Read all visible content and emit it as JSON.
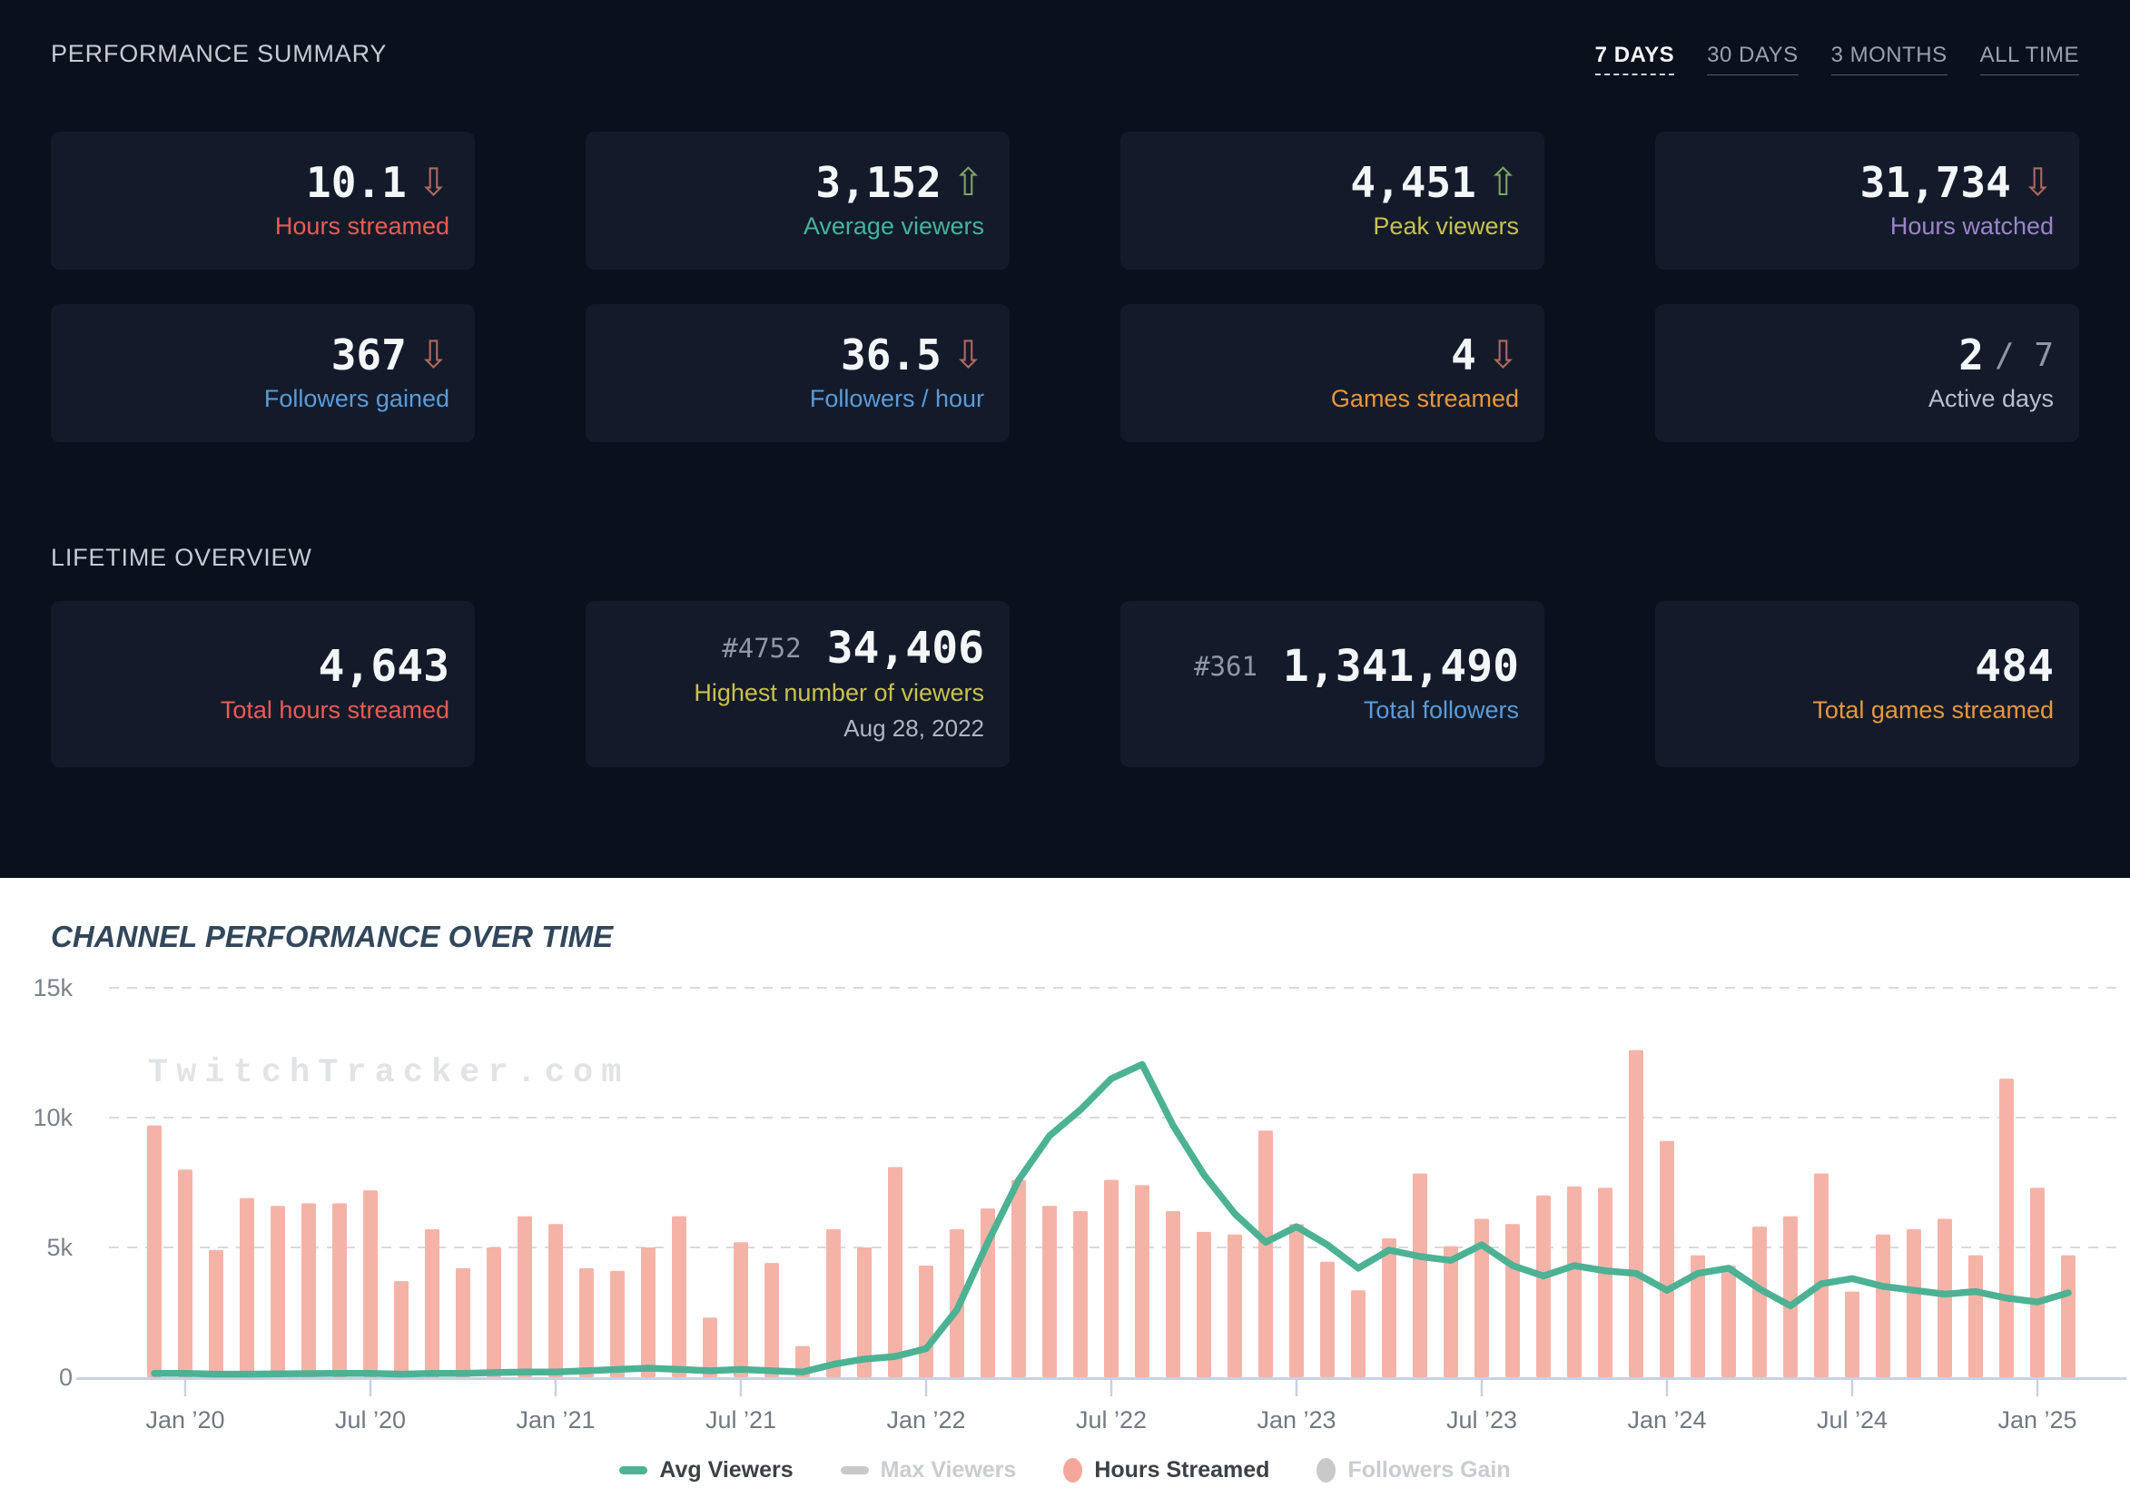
{
  "icons": {
    "up_arrow_glyph": "⇧",
    "down_arrow_glyph": "⇩"
  },
  "colors": {
    "background_dark": "#0a101c",
    "card_background": "#131b2b",
    "trend_up": "#7fa463",
    "trend_down": "#b2685f",
    "axis": "#c8d1e4",
    "gridline": "#dadada"
  },
  "summary": {
    "title": "PERFORMANCE SUMMARY",
    "tabs": [
      {
        "label": "7 DAYS",
        "active": true
      },
      {
        "label": "30 DAYS",
        "active": false
      },
      {
        "label": "3 MONTHS",
        "active": false
      },
      {
        "label": "ALL TIME",
        "active": false
      }
    ],
    "cards": [
      {
        "value": "10.1",
        "label": "Hours streamed",
        "trend": "down",
        "color": "#ee5a52"
      },
      {
        "value": "3,152",
        "label": "Average viewers",
        "trend": "up",
        "color": "#45b39a"
      },
      {
        "value": "4,451",
        "label": "Peak viewers",
        "trend": "up",
        "color": "#c9c14c"
      },
      {
        "value": "31,734",
        "label": "Hours watched",
        "trend": "down",
        "color": "#9c83cb"
      },
      {
        "value": "367",
        "label": "Followers gained",
        "trend": "down",
        "color": "#5b9bd8"
      },
      {
        "value": "36.5",
        "label": "Followers / hour",
        "trend": "down",
        "color": "#5b9bd8"
      },
      {
        "value": "4",
        "label": "Games streamed",
        "trend": "down",
        "color": "#e8973a"
      },
      {
        "value": "2",
        "suffix": " / 7",
        "label": "Active days",
        "trend": null,
        "color": "#b7c0cc"
      }
    ]
  },
  "lifetime": {
    "title": "LIFETIME OVERVIEW",
    "cards": [
      {
        "rank": "",
        "value": "4,643",
        "label": "Total hours streamed",
        "date": "",
        "color": "#ee5a52"
      },
      {
        "rank": "#4752",
        "value": "34,406",
        "label": "Highest number of viewers",
        "date": "Aug 28, 2022",
        "color": "#c9c14c"
      },
      {
        "rank": "#361",
        "value": "1,341,490",
        "label": "Total followers",
        "date": "",
        "color": "#5b9bd8"
      },
      {
        "rank": "",
        "value": "484",
        "label": "Total games streamed",
        "date": "",
        "color": "#e8973a"
      }
    ]
  },
  "chart": {
    "title": "CHANNEL PERFORMANCE OVER TIME",
    "watermark": "TwitchTracker.com",
    "legend": {
      "items": [
        {
          "label": "Avg Viewers",
          "active": true,
          "swatch": "line",
          "color": "#4db394"
        },
        {
          "label": "Max Viewers",
          "active": false,
          "swatch": "line",
          "color": "#c9c9c9"
        },
        {
          "label": "Hours Streamed",
          "active": true,
          "swatch": "circle",
          "color": "#f5a79c"
        },
        {
          "label": "Followers Gain",
          "active": false,
          "swatch": "circle",
          "color": "#c9c9c9"
        }
      ]
    }
  },
  "chart_data": {
    "type": "mixed",
    "title": "CHANNEL PERFORMANCE OVER TIME",
    "ylim": [
      0,
      15000
    ],
    "grid": "dashed-horizontal",
    "legend_position": "bottom-center",
    "months": [
      "Dec ’19",
      "Jan ’20",
      "Feb ’20",
      "Mar ’20",
      "Apr ’20",
      "May ’20",
      "Jun ’20",
      "Jul ’20",
      "Aug ’20",
      "Sep ’20",
      "Oct ’20",
      "Nov ’20",
      "Dec ’20",
      "Jan ’21",
      "Feb ’21",
      "Mar ’21",
      "Apr ’21",
      "May ’21",
      "Jun ’21",
      "Jul ’21",
      "Aug ’21",
      "Sep ’21",
      "Oct ’21",
      "Nov ’21",
      "Dec ’21",
      "Jan ’22",
      "Feb ’22",
      "Mar ’22",
      "Apr ’22",
      "May ’22",
      "Jun ’22",
      "Jul ’22",
      "Aug ’22",
      "Sep ’22",
      "Oct ’22",
      "Nov ’22",
      "Dec ’22",
      "Jan ’23",
      "Feb ’23",
      "Mar ’23",
      "Apr ’23",
      "May ’23",
      "Jun ’23",
      "Jul ’23",
      "Aug ’23",
      "Sep ’23",
      "Oct ’23",
      "Nov ’23",
      "Dec ’23",
      "Jan ’24",
      "Feb ’24",
      "Mar ’24",
      "Apr ’24",
      "May ’24",
      "Jun ’24",
      "Jul ’24",
      "Aug ’24",
      "Sep ’24",
      "Oct ’24",
      "Nov ’24",
      "Dec ’24",
      "Jan ’25",
      "Feb ’25"
    ],
    "series": [
      {
        "name": "Avg Viewers",
        "type": "line",
        "color": "#4cb293",
        "values": [
          150,
          150,
          120,
          120,
          130,
          140,
          150,
          150,
          120,
          150,
          150,
          180,
          200,
          200,
          250,
          300,
          350,
          300,
          250,
          300,
          250,
          200,
          500,
          700,
          800,
          1100,
          2600,
          5200,
          7600,
          9300,
          10300,
          11500,
          12050,
          9700,
          7800,
          6300,
          5200,
          5800,
          5100,
          4200,
          4900,
          4650,
          4500,
          5100,
          4300,
          3900,
          4300,
          4100,
          4000,
          3350,
          4000,
          4200,
          3400,
          2750,
          3600,
          3800,
          3500,
          3350,
          3200,
          3300,
          3050,
          2900,
          3250
        ]
      },
      {
        "name": "Hours Streamed",
        "type": "bar",
        "color": "#f5b3a8",
        "values": [
          9700,
          8000,
          4900,
          6900,
          6600,
          6700,
          6700,
          7200,
          3700,
          5700,
          4200,
          5000,
          6200,
          5900,
          4200,
          4100,
          5000,
          6200,
          2300,
          5200,
          4400,
          1200,
          5700,
          5000,
          8100,
          4300,
          5700,
          6500,
          7600,
          6600,
          6400,
          7600,
          7400,
          6400,
          5600,
          5500,
          9500,
          5900,
          4450,
          3350,
          5350,
          7850,
          5050,
          6100,
          5900,
          7000,
          7350,
          7300,
          12600,
          9100,
          4700,
          4300,
          5800,
          6200,
          7850,
          3300,
          5500,
          5700,
          6100,
          4700,
          11500,
          7300,
          4700
        ]
      }
    ],
    "y_axis": {
      "ticks": [
        {
          "label": "15k",
          "value": 15000
        },
        {
          "label": "10k",
          "value": 10000
        },
        {
          "label": "5k",
          "value": 5000
        },
        {
          "label": "0",
          "value": 0
        }
      ]
    },
    "x_axis": {
      "ticks": [
        {
          "index": 1,
          "label": "Jan ’20"
        },
        {
          "index": 7,
          "label": "Jul ’20"
        },
        {
          "index": 13,
          "label": "Jan ’21"
        },
        {
          "index": 19,
          "label": "Jul ’21"
        },
        {
          "index": 25,
          "label": "Jan ’22"
        },
        {
          "index": 31,
          "label": "Jul ’22"
        },
        {
          "index": 37,
          "label": "Jan ’23"
        },
        {
          "index": 43,
          "label": "Jul ’23"
        },
        {
          "index": 49,
          "label": "Jan ’24"
        },
        {
          "index": 55,
          "label": "Jul ’24"
        },
        {
          "index": 61,
          "label": "Jan ’25"
        }
      ]
    }
  }
}
